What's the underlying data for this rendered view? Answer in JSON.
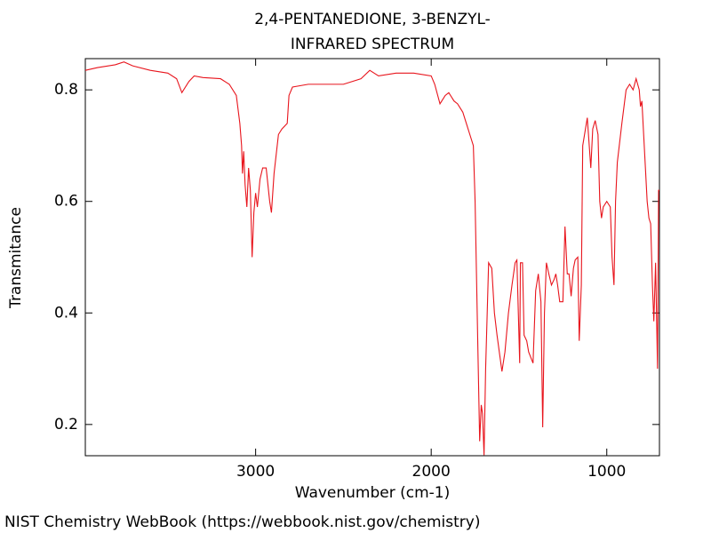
{
  "chart_data": {
    "type": "line",
    "title": "2,4-PENTANEDIONE, 3-BENZYL-",
    "subtitle": "INFRARED SPECTRUM",
    "x_label": "Wavenumber (cm-1)",
    "y_label": "Transmitance",
    "footer": "NIST Chemistry WebBook (https://webbook.nist.gov/chemistry)",
    "color": "#e8141c",
    "xlim": [
      3970,
      700
    ],
    "xticks": [
      3000,
      2000,
      1000
    ],
    "ylim": [
      0.144,
      0.856
    ],
    "yticks": [
      0.2,
      0.4,
      0.6,
      0.8
    ],
    "x": [
      3970,
      3900,
      3800,
      3750,
      3700,
      3600,
      3500,
      3450,
      3420,
      3380,
      3350,
      3300,
      3200,
      3150,
      3110,
      3090,
      3080,
      3075,
      3068,
      3060,
      3050,
      3040,
      3030,
      3020,
      3010,
      3000,
      2990,
      2975,
      2960,
      2940,
      2920,
      2910,
      2895,
      2870,
      2850,
      2820,
      2810,
      2790,
      2700,
      2600,
      2500,
      2400,
      2350,
      2300,
      2200,
      2100,
      2000,
      1980,
      1950,
      1920,
      1900,
      1870,
      1850,
      1820,
      1800,
      1780,
      1760,
      1750,
      1735,
      1724,
      1715,
      1708,
      1699,
      1690,
      1673,
      1655,
      1640,
      1625,
      1597,
      1580,
      1560,
      1540,
      1522,
      1512,
      1496,
      1492,
      1480,
      1471,
      1456,
      1445,
      1420,
      1405,
      1390,
      1375,
      1365,
      1355,
      1344,
      1330,
      1315,
      1300,
      1290,
      1280,
      1268,
      1250,
      1238,
      1225,
      1215,
      1203,
      1190,
      1180,
      1165,
      1157,
      1145,
      1137,
      1111,
      1091,
      1080,
      1066,
      1050,
      1040,
      1030,
      1020,
      1000,
      980,
      970,
      959,
      950,
      940,
      914,
      890,
      870,
      850,
      833,
      815,
      808,
      800,
      790,
      780,
      770,
      760,
      750,
      740,
      732,
      722,
      711,
      705,
      700
    ],
    "values": [
      0.835,
      0.84,
      0.845,
      0.85,
      0.843,
      0.835,
      0.83,
      0.82,
      0.795,
      0.815,
      0.825,
      0.822,
      0.82,
      0.81,
      0.79,
      0.74,
      0.7,
      0.65,
      0.69,
      0.63,
      0.59,
      0.66,
      0.62,
      0.5,
      0.58,
      0.615,
      0.59,
      0.64,
      0.66,
      0.66,
      0.6,
      0.58,
      0.65,
      0.72,
      0.73,
      0.74,
      0.79,
      0.805,
      0.81,
      0.81,
      0.81,
      0.82,
      0.835,
      0.825,
      0.83,
      0.83,
      0.825,
      0.81,
      0.775,
      0.79,
      0.795,
      0.78,
      0.775,
      0.76,
      0.74,
      0.72,
      0.7,
      0.6,
      0.35,
      0.17,
      0.235,
      0.22,
      0.145,
      0.3,
      0.49,
      0.48,
      0.4,
      0.36,
      0.295,
      0.33,
      0.4,
      0.45,
      0.49,
      0.495,
      0.31,
      0.49,
      0.49,
      0.36,
      0.35,
      0.33,
      0.31,
      0.44,
      0.47,
      0.42,
      0.195,
      0.4,
      0.49,
      0.47,
      0.45,
      0.46,
      0.47,
      0.45,
      0.42,
      0.42,
      0.555,
      0.47,
      0.47,
      0.43,
      0.48,
      0.495,
      0.5,
      0.35,
      0.45,
      0.7,
      0.75,
      0.66,
      0.73,
      0.745,
      0.72,
      0.6,
      0.57,
      0.59,
      0.6,
      0.59,
      0.5,
      0.45,
      0.6,
      0.67,
      0.74,
      0.8,
      0.81,
      0.8,
      0.82,
      0.8,
      0.77,
      0.78,
      0.72,
      0.66,
      0.6,
      0.57,
      0.56,
      0.45,
      0.385,
      0.49,
      0.3,
      0.62,
      0.62
    ]
  }
}
